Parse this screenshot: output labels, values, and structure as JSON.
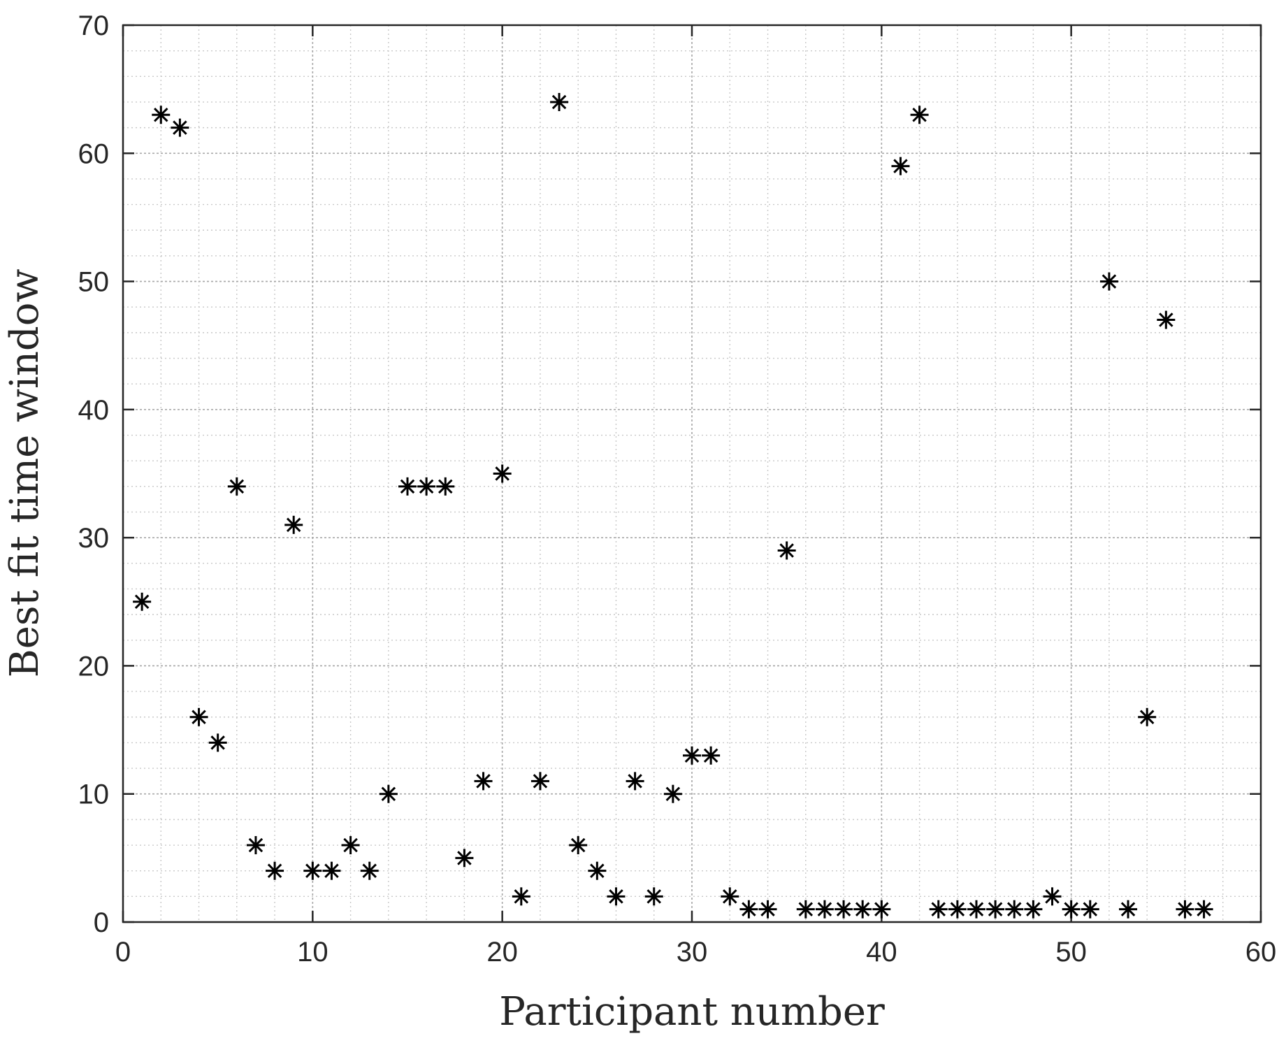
{
  "chart_data": {
    "type": "scatter",
    "title": "",
    "xlabel": "Participant number",
    "ylabel": "Best fit time window",
    "xlim": [
      0,
      60
    ],
    "ylim": [
      0,
      70
    ],
    "xticks": [
      0,
      10,
      20,
      30,
      40,
      50,
      60
    ],
    "yticks": [
      0,
      10,
      20,
      30,
      40,
      50,
      60,
      70
    ],
    "grid": true,
    "minor_grid": true,
    "marker": "asterisk",
    "marker_color": "#000000",
    "series": [
      {
        "x": [
          1,
          2,
          3,
          4,
          5,
          6,
          7,
          8,
          9,
          10,
          11,
          12,
          13,
          14,
          15,
          16,
          17,
          18,
          19,
          20,
          21,
          22,
          23,
          24,
          25,
          26,
          27,
          28,
          29,
          30,
          31,
          32,
          33,
          34,
          35,
          36,
          37,
          38,
          39,
          40,
          41,
          42,
          43,
          44,
          45,
          46,
          47,
          48,
          49,
          50,
          51,
          52,
          53,
          54,
          55,
          56,
          57
        ],
        "y": [
          25,
          63,
          62,
          16,
          14,
          34,
          6,
          4,
          31,
          4,
          4,
          6,
          4,
          10,
          34,
          34,
          34,
          5,
          11,
          35,
          2,
          11,
          64,
          6,
          4,
          2,
          11,
          2,
          10,
          13,
          13,
          2,
          1,
          1,
          29,
          1,
          1,
          1,
          1,
          1,
          59,
          63,
          1,
          1,
          1,
          1,
          1,
          1,
          2,
          1,
          1,
          50,
          1,
          16,
          47,
          1,
          1
        ]
      }
    ]
  }
}
